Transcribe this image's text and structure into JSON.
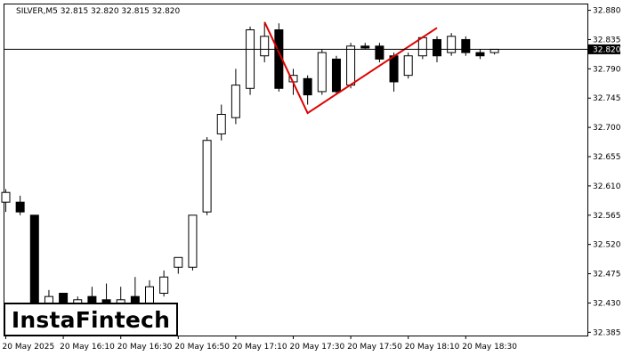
{
  "header": {
    "text": "SILVER,M5  32.815 32.820 32.815 32.820"
  },
  "logo": {
    "text": "InstaFintech"
  },
  "chart_data": {
    "type": "candlestick",
    "symbol": "SILVER",
    "timeframe": "M5",
    "ohlc_header": {
      "open": 32.815,
      "high": 32.82,
      "low": 32.815,
      "close": 32.82
    },
    "current_price": 32.82,
    "current_price_label": "32.820",
    "ylim": [
      32.38,
      32.889
    ],
    "y_ticks": [
      "32.880",
      "32.835",
      "32.790",
      "32.745",
      "32.700",
      "32.655",
      "32.610",
      "32.565",
      "32.520",
      "32.475",
      "32.430",
      "32.385"
    ],
    "x_ticks": [
      {
        "label": "20 May 2025",
        "bar": 0
      },
      {
        "label": "20 May 16:10",
        "bar": 4
      },
      {
        "label": "20 May 16:30",
        "bar": 8
      },
      {
        "label": "20 May 16:50",
        "bar": 12
      },
      {
        "label": "20 May 17:10",
        "bar": 16
      },
      {
        "label": "20 May 17:30",
        "bar": 20
      },
      {
        "label": "20 May 17:50",
        "bar": 24
      },
      {
        "label": "20 May 18:10",
        "bar": 28
      },
      {
        "label": "20 May 18:30",
        "bar": 32
      }
    ],
    "candles": [
      {
        "o": 32.585,
        "h": 32.605,
        "l": 32.57,
        "c": 32.6
      },
      {
        "o": 32.585,
        "h": 32.595,
        "l": 32.565,
        "c": 32.57
      },
      {
        "o": 32.565,
        "h": 32.565,
        "l": 32.4,
        "c": 32.4
      },
      {
        "o": 32.43,
        "h": 32.45,
        "l": 32.415,
        "c": 32.44
      },
      {
        "o": 32.445,
        "h": 32.445,
        "l": 32.42,
        "c": 32.43
      },
      {
        "o": 32.43,
        "h": 32.44,
        "l": 32.42,
        "c": 32.435
      },
      {
        "o": 32.44,
        "h": 32.455,
        "l": 32.415,
        "c": 32.43
      },
      {
        "o": 32.435,
        "h": 32.46,
        "l": 32.425,
        "c": 32.43
      },
      {
        "o": 32.43,
        "h": 32.455,
        "l": 32.42,
        "c": 32.435
      },
      {
        "o": 32.44,
        "h": 32.47,
        "l": 32.42,
        "c": 32.43
      },
      {
        "o": 32.43,
        "h": 32.465,
        "l": 32.42,
        "c": 32.455
      },
      {
        "o": 32.445,
        "h": 32.48,
        "l": 32.44,
        "c": 32.47
      },
      {
        "o": 32.485,
        "h": 32.5,
        "l": 32.475,
        "c": 32.5
      },
      {
        "o": 32.485,
        "h": 32.565,
        "l": 32.48,
        "c": 32.565
      },
      {
        "o": 32.57,
        "h": 32.685,
        "l": 32.565,
        "c": 32.68
      },
      {
        "o": 32.69,
        "h": 32.735,
        "l": 32.68,
        "c": 32.72
      },
      {
        "o": 32.715,
        "h": 32.79,
        "l": 32.705,
        "c": 32.765
      },
      {
        "o": 32.76,
        "h": 32.855,
        "l": 32.75,
        "c": 32.85
      },
      {
        "o": 32.81,
        "h": 32.86,
        "l": 32.8,
        "c": 32.84
      },
      {
        "o": 32.85,
        "h": 32.86,
        "l": 32.755,
        "c": 32.76
      },
      {
        "o": 32.77,
        "h": 32.79,
        "l": 32.75,
        "c": 32.78
      },
      {
        "o": 32.775,
        "h": 32.78,
        "l": 32.735,
        "c": 32.75
      },
      {
        "o": 32.755,
        "h": 32.82,
        "l": 32.75,
        "c": 32.815
      },
      {
        "o": 32.805,
        "h": 32.81,
        "l": 32.75,
        "c": 32.755
      },
      {
        "o": 32.765,
        "h": 32.83,
        "l": 32.76,
        "c": 32.825
      },
      {
        "o": 32.825,
        "h": 32.83,
        "l": 32.82,
        "c": 32.822
      },
      {
        "o": 32.825,
        "h": 32.83,
        "l": 32.8,
        "c": 32.805
      },
      {
        "o": 32.81,
        "h": 32.815,
        "l": 32.755,
        "c": 32.77
      },
      {
        "o": 32.78,
        "h": 32.815,
        "l": 32.775,
        "c": 32.81
      },
      {
        "o": 32.81,
        "h": 32.84,
        "l": 32.805,
        "c": 32.838
      },
      {
        "o": 32.835,
        "h": 32.84,
        "l": 32.8,
        "c": 32.81
      },
      {
        "o": 32.815,
        "h": 32.845,
        "l": 32.81,
        "c": 32.84
      },
      {
        "o": 32.835,
        "h": 32.84,
        "l": 32.81,
        "c": 32.815
      },
      {
        "o": 32.815,
        "h": 32.82,
        "l": 32.805,
        "c": 32.81
      },
      {
        "o": 32.815,
        "h": 32.82,
        "l": 32.812,
        "c": 32.82
      }
    ],
    "pattern_lines": {
      "color": "#e00000",
      "points": [
        {
          "bar": 18,
          "price": 32.862
        },
        {
          "bar": 21,
          "price": 32.722
        },
        {
          "bar": 30,
          "price": 32.853
        }
      ]
    },
    "colors": {
      "bull_fill": "#ffffff",
      "bear_fill": "#000000",
      "outline": "#000000",
      "price_box": "#000000"
    }
  }
}
